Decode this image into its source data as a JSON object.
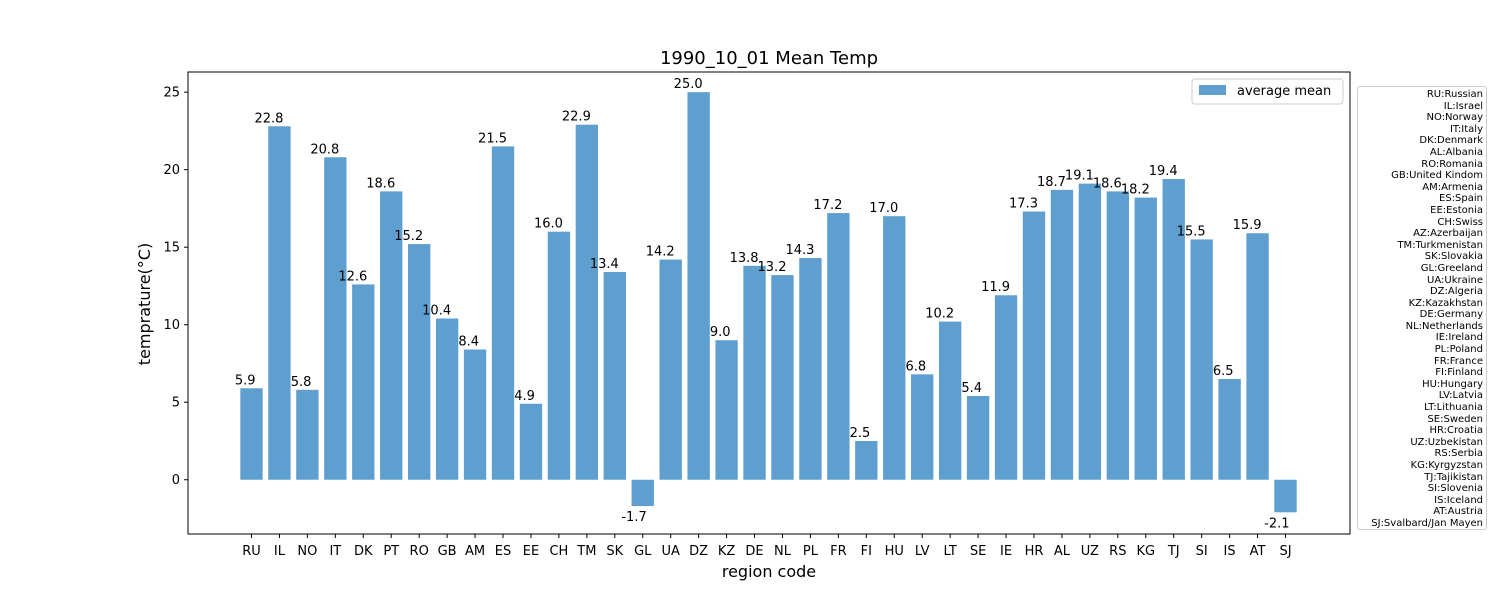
{
  "chart_data": {
    "type": "bar",
    "title": "1990_10_01 Mean Temp",
    "xlabel": "region code",
    "ylabel": "temprature(°C)",
    "ylim": [
      -3.5,
      26.3
    ],
    "yticks": [
      0,
      5,
      10,
      15,
      20,
      25
    ],
    "grid": false,
    "legend_position": "top-right",
    "bar_color": "#5f9fd0",
    "series": [
      {
        "name": "average mean",
        "values": [
          5.9,
          22.8,
          5.8,
          20.8,
          12.6,
          18.6,
          15.2,
          10.4,
          8.4,
          21.5,
          4.9,
          16.0,
          22.9,
          13.4,
          -1.7,
          14.2,
          25.0,
          9.0,
          13.8,
          13.2,
          14.3,
          17.2,
          2.5,
          17.0,
          6.8,
          10.2,
          5.4,
          11.9,
          17.3,
          18.7,
          19.1,
          18.6,
          18.2,
          19.4,
          15.5,
          6.5,
          15.9,
          -2.1
        ],
        "labels": [
          "5.9",
          "22.8",
          "5.8",
          "20.8",
          "12.6",
          "18.6",
          "15.2",
          "10.4",
          "8.4",
          "21.5",
          "4.9",
          "16.0",
          "22.9",
          "13.4",
          "-1.7",
          "14.2",
          "25.0",
          "9.0",
          "13.8",
          "13.2",
          "14.3",
          "17.2",
          "2.5",
          "17.0",
          "6.8",
          "10.2",
          "5.4",
          "11.9",
          "17.3",
          "18.7",
          "19.1",
          "18.6",
          "18.2",
          "19.4",
          "15.5",
          "6.5",
          "15.9",
          "-2.1"
        ]
      }
    ],
    "categories": [
      "RU",
      "IL",
      "NO",
      "IT",
      "DK",
      "PT",
      "RO",
      "GB",
      "AM",
      "ES",
      "EE",
      "CH",
      "TM",
      "SK",
      "GL",
      "UA",
      "DZ",
      "KZ",
      "DE",
      "NL",
      "PL",
      "FR",
      "FI",
      "HU",
      "LV",
      "LT",
      "SE",
      "IE",
      "HR",
      "AL",
      "UZ",
      "RS",
      "KG",
      "TJ",
      "SI",
      "IS",
      "AT",
      "SJ"
    ],
    "region_legend": [
      "RU:Russian",
      "IL:Israel",
      "NO:Norway",
      "IT:Italy",
      "DK:Denmark",
      "AL:Albania",
      "RO:Romania",
      "GB:United Kindom",
      "AM:Armenia",
      "ES:Spain",
      "EE:Estonia",
      "CH:Swiss",
      "AZ:Azerbaijan",
      "TM:Turkmenistan",
      "SK:Slovakia",
      "GL:Greeland",
      "UA:Ukraine",
      "DZ:Algeria",
      "KZ:Kazakhstan",
      "DE:Germany",
      "NL:Netherlands",
      "IE:Ireland",
      "PL:Poland",
      "FR:France",
      "FI:Finland",
      "HU:Hungary",
      "LV:Latvia",
      "LT:Lithuania",
      "SE:Sweden",
      "HR:Croatia",
      "UZ:Uzbekistan",
      "RS:Serbia",
      "KG:Kyrgyzstan",
      "TJ:Tajikistan",
      "SI:Slovenia",
      "IS:Iceland",
      "AT:Austria",
      "SJ:Svalbard/Jan Mayen"
    ]
  }
}
